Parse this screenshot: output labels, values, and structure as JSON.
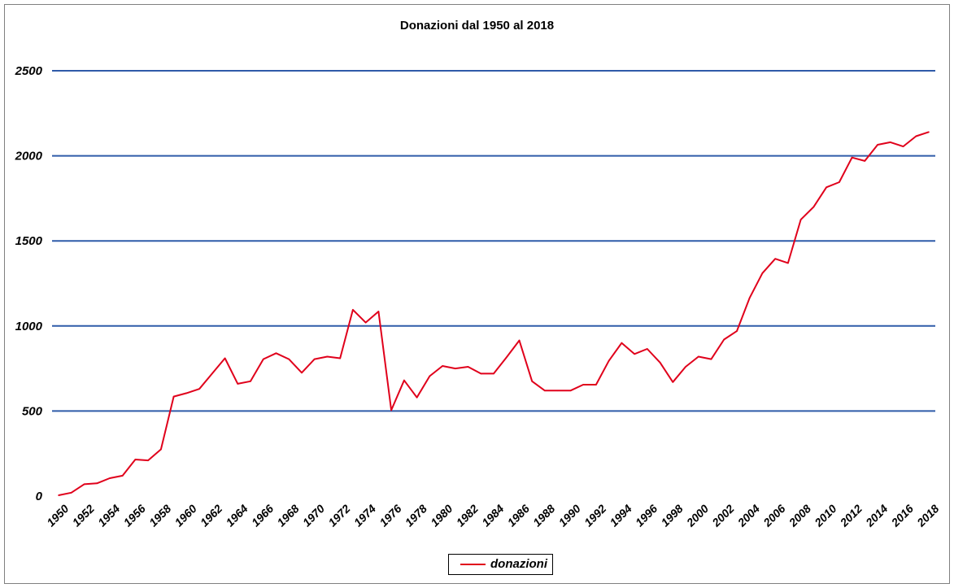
{
  "chart_data": {
    "type": "line",
    "title": "Donazioni dal 1950 al 2018",
    "xlabel": "",
    "ylabel": "",
    "ylim": [
      0,
      2500
    ],
    "y_ticks": [
      "0",
      "500",
      "1000",
      "1500",
      "2000",
      "2500"
    ],
    "x_tick_labels": [
      "1950",
      "1952",
      "1954",
      "1956",
      "1958",
      "1960",
      "1962",
      "1964",
      "1966",
      "1968",
      "1970",
      "1972",
      "1974",
      "1976",
      "1978",
      "1980",
      "1982",
      "1984",
      "1986",
      "1988",
      "1990",
      "1992",
      "1994",
      "1996",
      "1998",
      "2000",
      "2002",
      "2004",
      "2006",
      "2008",
      "2010",
      "2012",
      "2014",
      "2016",
      "2018"
    ],
    "x": [
      1950,
      1951,
      1952,
      1953,
      1954,
      1955,
      1956,
      1957,
      1958,
      1959,
      1960,
      1961,
      1962,
      1963,
      1964,
      1965,
      1966,
      1967,
      1968,
      1969,
      1970,
      1971,
      1972,
      1973,
      1974,
      1975,
      1976,
      1977,
      1978,
      1979,
      1980,
      1981,
      1982,
      1983,
      1984,
      1985,
      1986,
      1987,
      1988,
      1989,
      1990,
      1991,
      1992,
      1993,
      1994,
      1995,
      1996,
      1997,
      1998,
      1999,
      2000,
      2001,
      2002,
      2003,
      2004,
      2005,
      2006,
      2007,
      2008,
      2009,
      2010,
      2011,
      2012,
      2013,
      2014,
      2015,
      2016,
      2017,
      2018
    ],
    "series": [
      {
        "name": "donazioni",
        "color": "#e0001b",
        "values": [
          5,
          20,
          70,
          75,
          105,
          120,
          215,
          210,
          275,
          585,
          605,
          630,
          720,
          810,
          660,
          675,
          805,
          840,
          805,
          725,
          805,
          820,
          810,
          1095,
          1020,
          1085,
          505,
          680,
          580,
          705,
          765,
          750,
          760,
          720,
          720,
          815,
          915,
          675,
          620,
          620,
          620,
          655,
          655,
          795,
          900,
          835,
          865,
          785,
          670,
          760,
          820,
          805,
          920,
          970,
          1165,
          1310,
          1395,
          1370,
          1625,
          1700,
          1815,
          1845,
          1990,
          1970,
          2065,
          2080,
          2055,
          2115,
          2140
        ]
      }
    ],
    "grid": true,
    "grid_color": "#2f5ba9",
    "legend_position": "bottom-center"
  }
}
